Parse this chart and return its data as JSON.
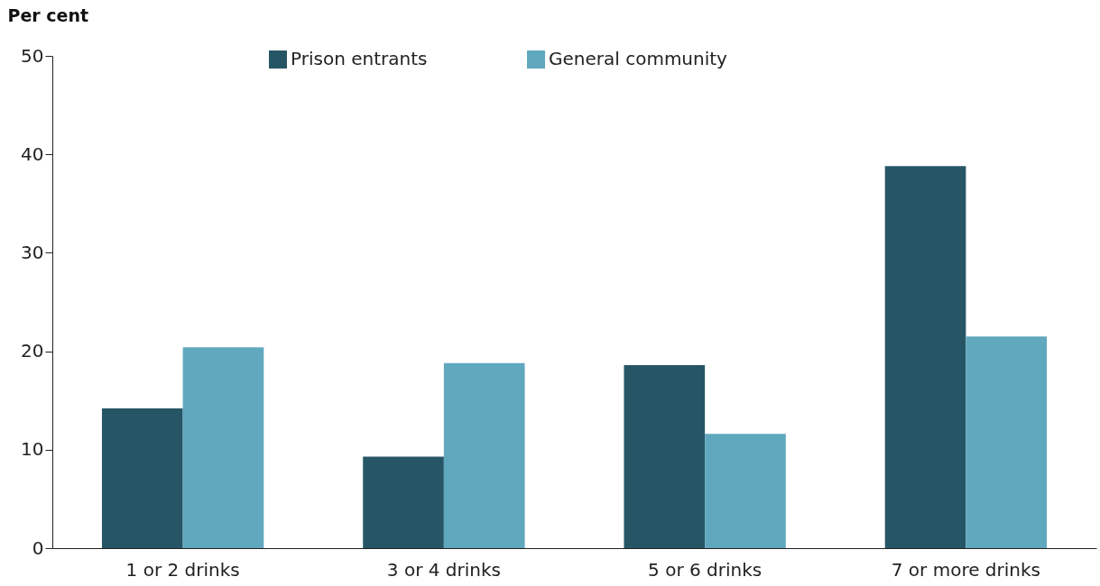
{
  "chart_data": {
    "type": "bar",
    "ylabel": "Per cent",
    "categories": [
      "1 or 2 drinks",
      "3 or 4 drinks",
      "5 or 6 drinks",
      "7 or more drinks"
    ],
    "series": [
      {
        "name": "Prison entrants",
        "color": "#265665",
        "values": [
          14.2,
          9.3,
          18.6,
          38.8
        ]
      },
      {
        "name": "General community",
        "color": "#60a8be",
        "values": [
          20.4,
          18.8,
          11.6,
          21.5
        ]
      }
    ],
    "ylim": [
      0,
      50
    ],
    "yticks": [
      0,
      10,
      20,
      30,
      40,
      50
    ],
    "grid": false,
    "legend": "top"
  }
}
